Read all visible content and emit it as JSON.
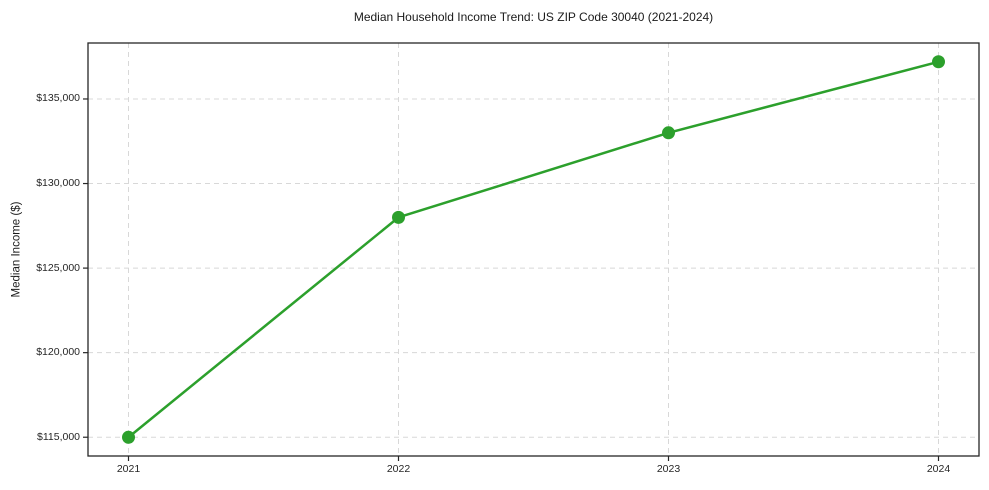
{
  "chart_data": {
    "type": "line",
    "title": "Median Household Income Trend: US ZIP Code 30040 (2021-2024)",
    "xlabel": "",
    "ylabel": "Median Income ($)",
    "x": [
      2021,
      2022,
      2023,
      2024
    ],
    "values": [
      115000,
      128000,
      133000,
      137200
    ],
    "series": [
      {
        "name": "Median Income",
        "values": [
          115000,
          128000,
          133000,
          137200
        ]
      }
    ],
    "xlim": [
      2020.85,
      2024.15
    ],
    "ylim": [
      113890,
      138310
    ],
    "xticks": [
      2021,
      2022,
      2023,
      2024
    ],
    "xtick_labels": [
      "2021",
      "2022",
      "2023",
      "2024"
    ],
    "yticks": [
      115000,
      120000,
      125000,
      130000,
      135000
    ],
    "ytick_labels": [
      "$115,000",
      "$120,000",
      "$125,000",
      "$130,000",
      "$135,000"
    ],
    "grid": true,
    "grid_style": "dashed",
    "legend_position": "none",
    "colors": {
      "line": "#2ca02c",
      "marker": "#2ca02c",
      "grid": "#d8d8d8",
      "spine": "#262626",
      "tick": "#262626",
      "title_text": "#1a1a1a",
      "tick_text": "#262626",
      "background": "#ffffff"
    },
    "marker_shape": "circle"
  }
}
